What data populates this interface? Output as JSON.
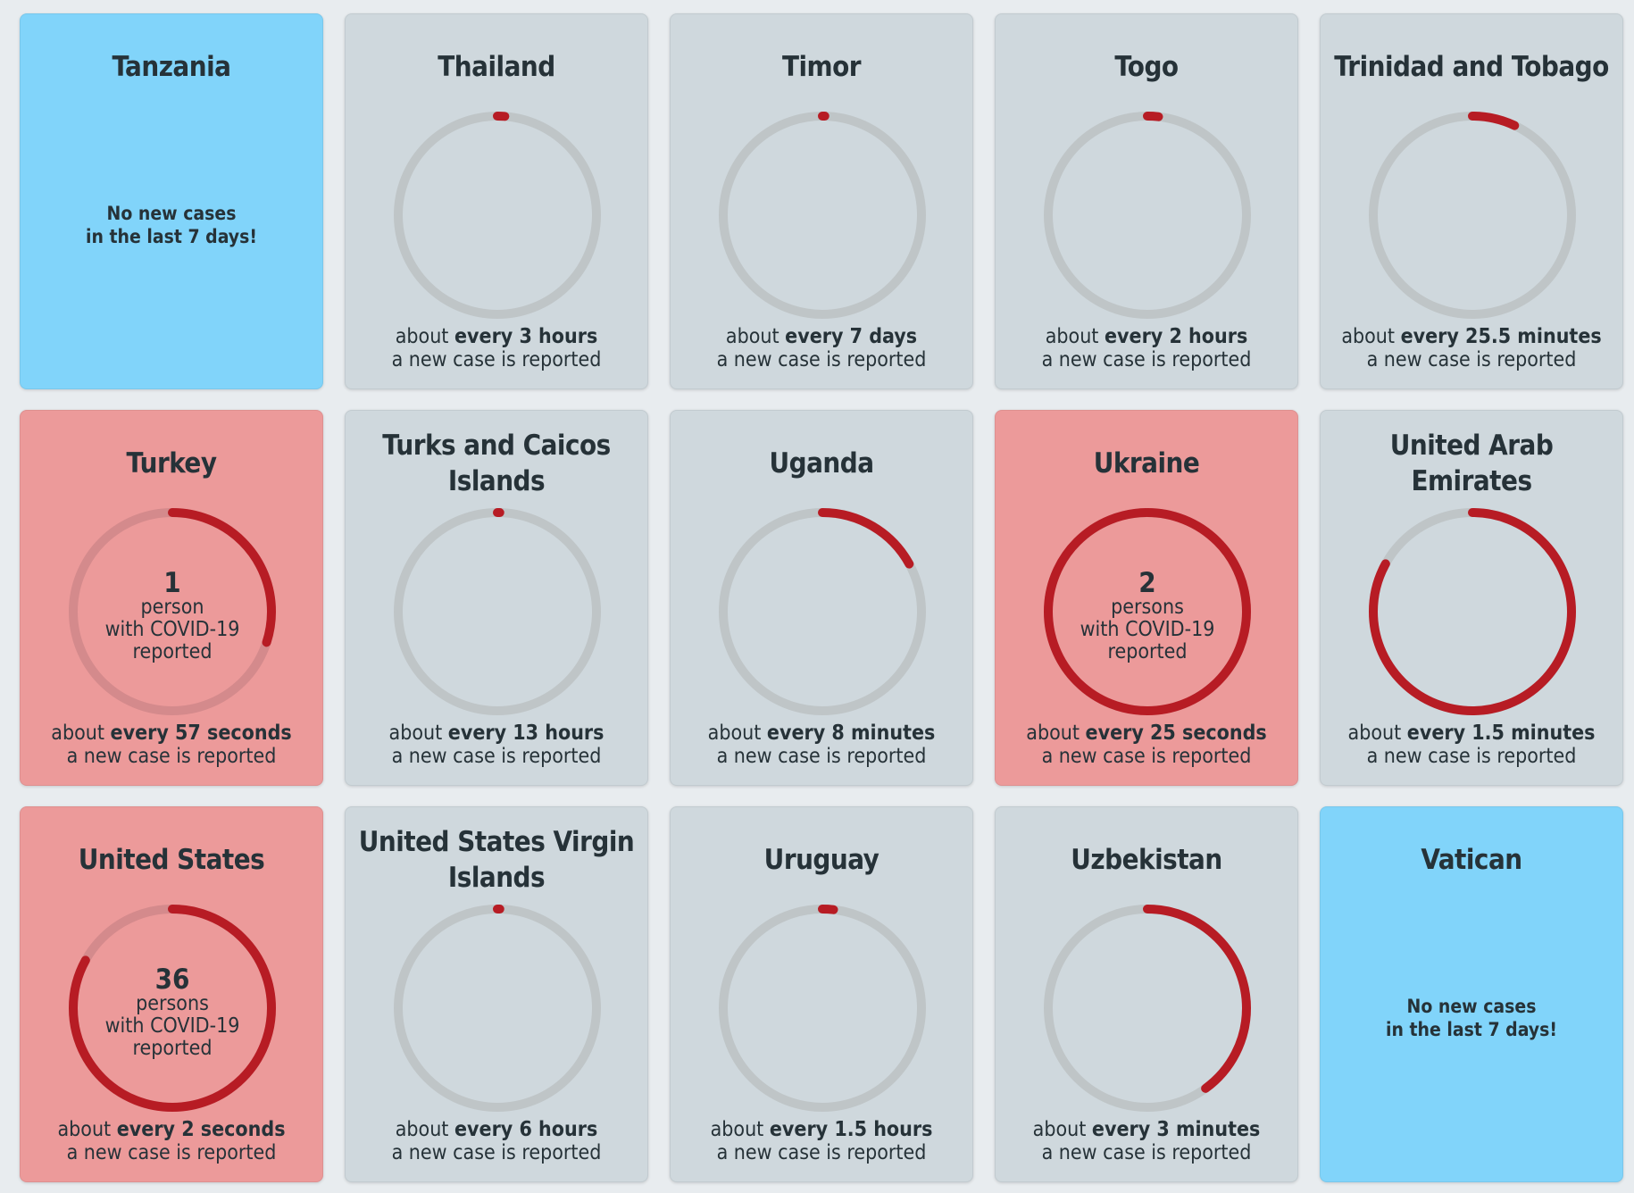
{
  "colors": {
    "fill": "#b71c24",
    "track": "#bfc5c7",
    "track_red": "#d48a8c"
  },
  "labels": {
    "about": "about",
    "new_case": "a new case is reported",
    "with": "with COVID-19",
    "reported": "reported",
    "no_cases_1": "No new cases",
    "no_cases_2": "in the last 7 days!"
  },
  "cards": [
    {
      "name": "Tanzania",
      "status": "blue"
    },
    {
      "name": "Thailand",
      "status": "gray",
      "interval": "every 3 hours",
      "progress": 0.012
    },
    {
      "name": "Timor",
      "status": "gray",
      "interval": "every 7 days",
      "progress": 0.004
    },
    {
      "name": "Togo",
      "status": "gray",
      "interval": "every 2 hours",
      "progress": 0.018
    },
    {
      "name": "Trinidad and Tobago",
      "status": "gray",
      "interval": "every 25.5 minutes",
      "progress": 0.07
    },
    {
      "name": "Turkey",
      "status": "red",
      "interval": "every 57 seconds",
      "progress": 0.3,
      "count": "1",
      "unit": "person"
    },
    {
      "name": "Turks and Caicos Islands",
      "status": "gray",
      "interval": "every 13 hours",
      "progress": 0.004
    },
    {
      "name": "Uganda",
      "status": "gray",
      "interval": "every 8 minutes",
      "progress": 0.17
    },
    {
      "name": "Ukraine",
      "status": "red",
      "interval": "every 25 seconds",
      "progress": 0.998,
      "count": "2",
      "unit": "persons"
    },
    {
      "name": "United Arab Emirates",
      "status": "gray",
      "interval": "every 1.5 minutes",
      "progress": 0.83
    },
    {
      "name": "United States",
      "status": "red",
      "interval": "every 2 seconds",
      "progress": 0.83,
      "count": "36",
      "unit": "persons"
    },
    {
      "name": "United States Virgin Islands",
      "status": "gray",
      "interval": "every 6 hours",
      "progress": 0.004
    },
    {
      "name": "Uruguay",
      "status": "gray",
      "interval": "every 1.5 hours",
      "progress": 0.018
    },
    {
      "name": "Uzbekistan",
      "status": "gray",
      "interval": "every 3 minutes",
      "progress": 0.4
    },
    {
      "name": "Vatican",
      "status": "blue"
    }
  ]
}
